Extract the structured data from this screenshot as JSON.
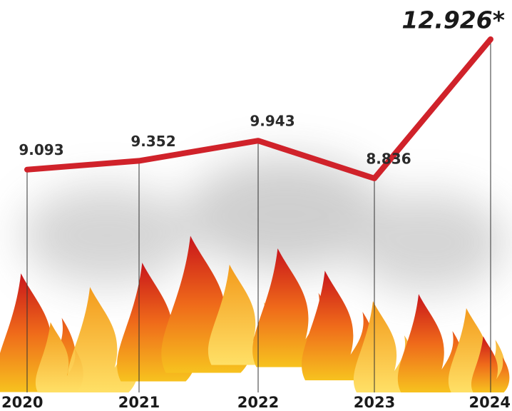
{
  "chart_data": {
    "type": "line",
    "categories": [
      "2020",
      "2021",
      "2022",
      "2023",
      "2024"
    ],
    "series": [
      {
        "color": "#d0222a",
        "values": [
          9.093,
          9.352,
          9.943,
          8.836,
          12.926
        ],
        "value_labels": [
          "9.093",
          "9.352",
          "9.943",
          "8.836",
          "12.926*"
        ]
      }
    ]
  }
}
